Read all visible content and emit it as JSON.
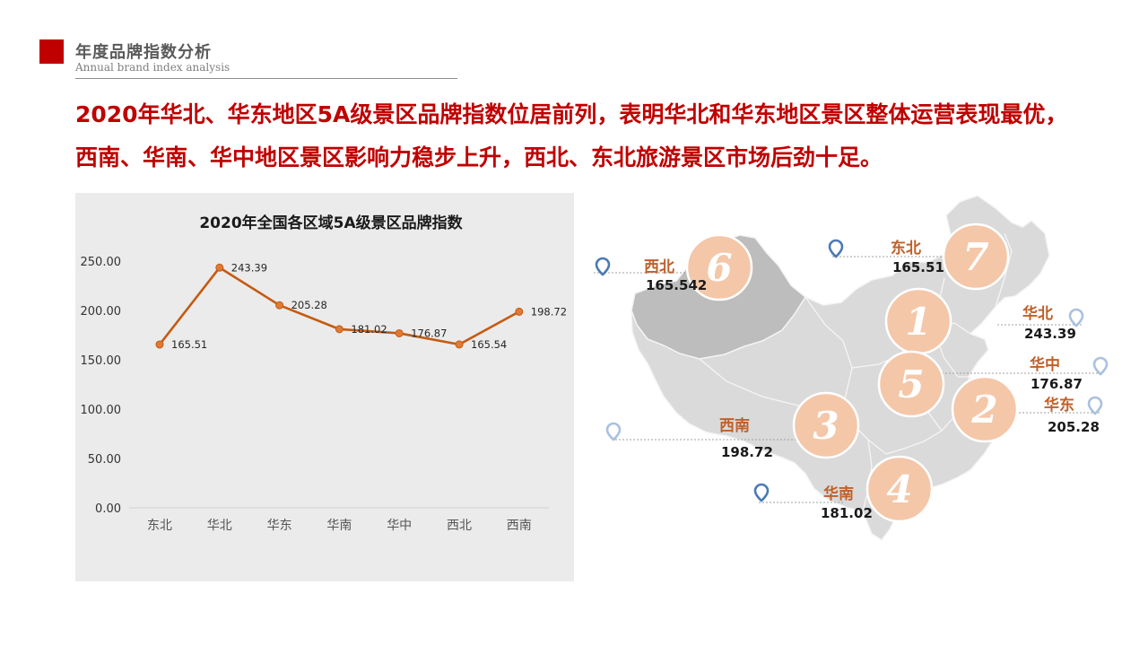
{
  "header": {
    "title": "年度品牌指数分析",
    "subtitle": "Annual brand index analysis"
  },
  "headline": "2020年华北、华东地区5A级景区品牌指数位居前列，表明华北和华东地区景区整体运营表现最优，西南、华南、华中地区景区影响力稳步上升，西北、东北旅游景区市场后劲十足。",
  "colors": {
    "accent": "#c00000",
    "line": "#c55a11",
    "badge": "#f4c7a9",
    "region_label": "#c0602a",
    "pin_dark": "#4a7ab5",
    "pin_light": "#a9c1e0",
    "map_fill": "#dadada",
    "map_highlight": "#bdbdbd"
  },
  "chart_data": {
    "type": "line",
    "title": "2020年全国各区域5A级景区品牌指数",
    "categories": [
      "东北",
      "华北",
      "华东",
      "华南",
      "华中",
      "西北",
      "西南"
    ],
    "values": [
      165.51,
      243.39,
      205.28,
      181.02,
      176.87,
      165.54,
      198.72
    ],
    "value_labels": [
      "165.51",
      "243.39",
      "205.28",
      "181.02",
      "176.87",
      "165.54",
      "198.72"
    ],
    "yticks": [
      "0.00",
      "50.00",
      "100.00",
      "150.00",
      "200.00",
      "250.00"
    ],
    "ylim": [
      0,
      250
    ],
    "grid": false,
    "legend": "none"
  },
  "map": {
    "regions": [
      {
        "name": "西北",
        "value": "165.542",
        "rank": "6",
        "pin_icon": "location-pin-icon",
        "pin_style": "dark"
      },
      {
        "name": "东北",
        "value": "165.51",
        "rank": "7",
        "pin_icon": "location-pin-icon",
        "pin_style": "dark"
      },
      {
        "name": "华北",
        "value": "243.39",
        "rank": "1",
        "pin_icon": "location-pin-icon",
        "pin_style": "light"
      },
      {
        "name": "华中",
        "value": "176.87",
        "rank": "5",
        "pin_icon": "location-pin-icon",
        "pin_style": "light"
      },
      {
        "name": "华东",
        "value": "205.28",
        "rank": "2",
        "pin_icon": "location-pin-icon",
        "pin_style": "light"
      },
      {
        "name": "西南",
        "value": "198.72",
        "rank": "3",
        "pin_icon": "location-pin-icon",
        "pin_style": "light"
      },
      {
        "name": "华南",
        "value": "181.02",
        "rank": "4",
        "pin_icon": "location-pin-icon",
        "pin_style": "dark"
      }
    ]
  }
}
